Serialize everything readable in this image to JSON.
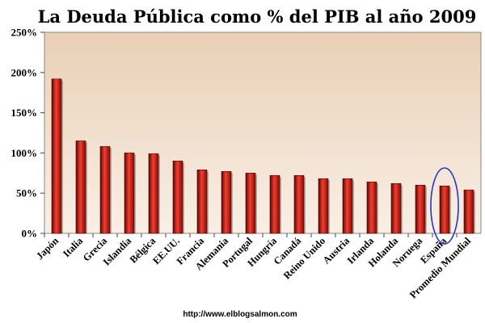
{
  "chart_data": {
    "type": "bar",
    "title": "La Deuda Pública como % del PIB al año 2009",
    "categories": [
      "Japón",
      "Italia",
      "Grecia",
      "Islandia",
      "Bélgica",
      "EE.UU.",
      "Francia",
      "Alemania",
      "Portugal",
      "Hungría",
      "Canadá",
      "Reino Unido",
      "Austria",
      "Irlanda",
      "Holanda",
      "Noruega",
      "España",
      "Promedio Mundial"
    ],
    "values": [
      192,
      115,
      108,
      100,
      99,
      90,
      79,
      77,
      75,
      72,
      72,
      68,
      68,
      64,
      62,
      60,
      59,
      54
    ],
    "ylim": [
      0,
      250
    ],
    "yticks": [
      "0%",
      "50%",
      "100%",
      "150%",
      "200%",
      "250%"
    ],
    "xlabel": "",
    "ylabel": "",
    "grid": false,
    "legend": "none",
    "highlight": {
      "category": "España",
      "shape": "ellipse",
      "color": "#2a34c8"
    },
    "colors": {
      "bar": "#c8120e",
      "bar_dark": "#5e0402",
      "bar_light": "#f04030",
      "plot_bg_top": "#e9cfb6",
      "plot_bg_bottom": "#f9efe5"
    }
  },
  "footer": {
    "url": "http://www.elblogsalmon.com"
  }
}
